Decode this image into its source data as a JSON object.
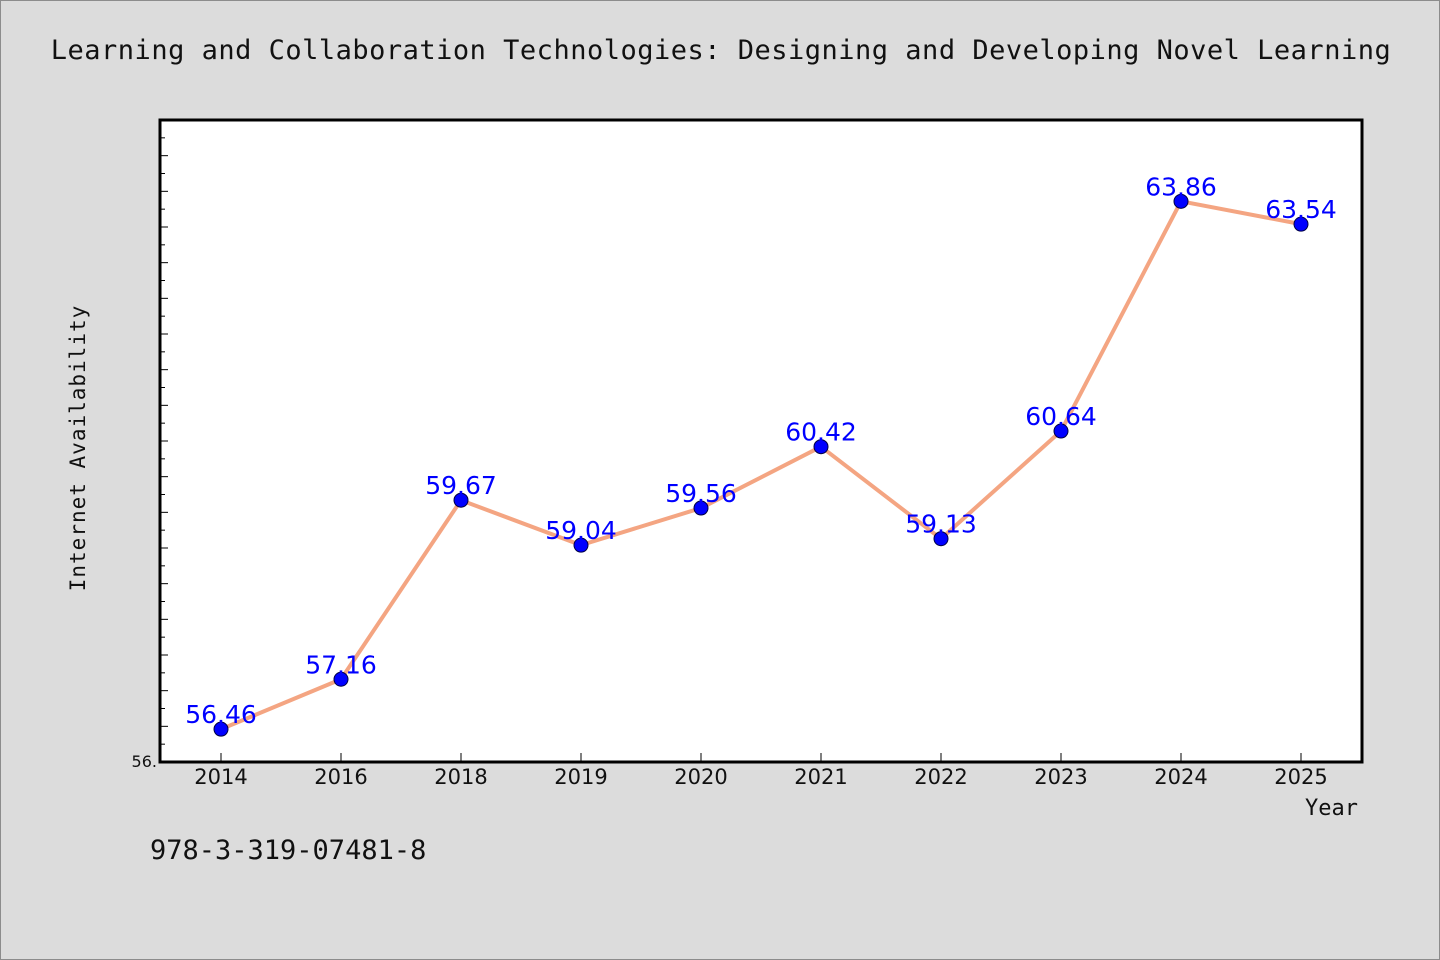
{
  "chart_data": {
    "type": "line",
    "title": "Learning and Collaboration Technologies: Designing and Developing Novel Learning",
    "xlabel": "Year",
    "ylabel": "Internet Availability",
    "categories": [
      "2014",
      "2016",
      "2018",
      "2019",
      "2020",
      "2021",
      "2022",
      "2023",
      "2024",
      "2025"
    ],
    "series": [
      {
        "values": [
          56.46,
          57.16,
          59.67,
          59.04,
          59.56,
          60.42,
          59.13,
          60.64,
          63.86,
          63.54
        ],
        "labels": [
          "56.46",
          "57.16",
          "59.67",
          "59.04",
          "59.56",
          "60.42",
          "59.13",
          "60.64",
          "63.86",
          "63.54"
        ]
      }
    ],
    "ylim": [
      56.0,
      65.0
    ],
    "y_tick_label": "56.",
    "grid": false,
    "legend": "none",
    "colors": {
      "line": "#f4a582",
      "marker": "#0000ff",
      "label": "#0000ff"
    }
  },
  "footer": {
    "isbn": "978-3-319-07481-8"
  }
}
